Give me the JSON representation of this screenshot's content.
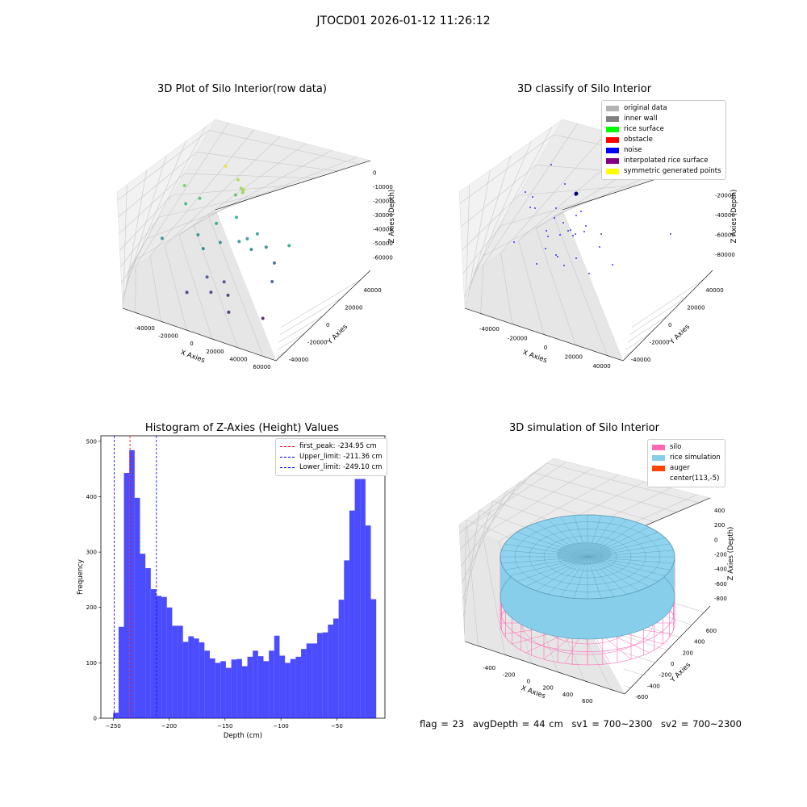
{
  "suptitle": "JTOCD01 2026-01-12 11:26:12",
  "chart_data": [
    {
      "type": "scatter",
      "title": "3D Plot of Silo Interior(row data)",
      "xlabel": "X Axies",
      "ylabel": "Y Axies",
      "zlabel": "Z Axies (Depth)",
      "xticks": [
        "-40000",
        "-20000",
        "0",
        "20000",
        "40000",
        "60000"
      ],
      "yticks": [
        "-40000",
        "-20000",
        "0",
        "20000",
        "40000"
      ],
      "zticks": [
        "0",
        "-10000",
        "-20000",
        "-30000",
        "-40000",
        "-50000",
        "-60000"
      ],
      "colormap": "viridis",
      "points": [
        {
          "x": 0,
          "y": 20000,
          "z": -2000
        },
        {
          "x": 8000,
          "y": 22000,
          "z": -8000
        },
        {
          "x": 12000,
          "y": 18000,
          "z": -10000
        },
        {
          "x": 15000,
          "y": 15000,
          "z": -9000
        },
        {
          "x": 14000,
          "y": 16000,
          "z": -11000
        },
        {
          "x": -25000,
          "y": 10000,
          "z": -15000
        },
        {
          "x": -22000,
          "y": 5000,
          "z": -22000
        },
        {
          "x": -15000,
          "y": 12000,
          "z": -20000
        },
        {
          "x": 5000,
          "y": 25000,
          "z": -18000
        },
        {
          "x": 10000,
          "y": 15000,
          "z": -25000
        },
        {
          "x": 0,
          "y": 5000,
          "z": -27000
        },
        {
          "x": 50000,
          "y": 10000,
          "z": -28000
        },
        {
          "x": -10000,
          "y": -2000,
          "z": -33000
        },
        {
          "x": 5000,
          "y": 0,
          "z": -34000
        },
        {
          "x": 15000,
          "y": 8000,
          "z": -34000
        },
        {
          "x": 20000,
          "y": 10000,
          "z": -32000
        },
        {
          "x": 25000,
          "y": 15000,
          "z": -30000
        },
        {
          "x": 30000,
          "y": 18000,
          "z": -37000
        },
        {
          "x": 22000,
          "y": 12000,
          "z": -38000
        },
        {
          "x": -5000,
          "y": -5000,
          "z": -38000
        },
        {
          "x": -30000,
          "y": -15000,
          "z": -35000
        },
        {
          "x": 40000,
          "y": 5000,
          "z": -48000
        },
        {
          "x": 35000,
          "y": 20000,
          "z": -45000
        },
        {
          "x": 0,
          "y": -10000,
          "z": -50000
        },
        {
          "x": 10000,
          "y": -5000,
          "z": -52000
        },
        {
          "x": 5000,
          "y": -15000,
          "z": -55000
        },
        {
          "x": -10000,
          "y": -20000,
          "z": -57000
        },
        {
          "x": 15000,
          "y": -10000,
          "z": -56000
        },
        {
          "x": 20000,
          "y": -20000,
          "z": -60000
        },
        {
          "x": 40000,
          "y": -10000,
          "z": -62000
        }
      ]
    },
    {
      "type": "scatter",
      "title": "3D classify of Silo Interior",
      "xlabel": "X Axies",
      "ylabel": "Y Axies",
      "zlabel": "Z Axies (Depth)",
      "xticks": [
        "-40000",
        "-20000",
        "0",
        "20000",
        "40000"
      ],
      "yticks": [
        "-40000",
        "-20000",
        "0",
        "20000",
        "40000"
      ],
      "zticks": [
        "0",
        "-20000",
        "-40000",
        "-60000",
        "-80000"
      ],
      "legend": [
        {
          "label": "original data",
          "color": "#b3b3b3"
        },
        {
          "label": "inner wall",
          "color": "#808080"
        },
        {
          "label": "rice surface",
          "color": "#00ff00"
        },
        {
          "label": "obstacle",
          "color": "#ff0000"
        },
        {
          "label": "noise",
          "color": "#0000ff"
        },
        {
          "label": "interpolated rice surface",
          "color": "#800080"
        },
        {
          "label": "symmetric generated points",
          "color": "#ffff00"
        }
      ]
    },
    {
      "type": "bar",
      "title": "Histogram of Z-Axies (Height) Values",
      "xlabel": "Depth (cm)",
      "ylabel": "Frequency",
      "xlim": [
        -261,
        -7
      ],
      "ylim": [
        0,
        510
      ],
      "xticks": [
        -250,
        -200,
        -150,
        -100,
        -50
      ],
      "yticks": [
        0,
        100,
        200,
        300,
        400,
        500
      ],
      "bin_start": -250,
      "bin_width": 4.8,
      "values": [
        10,
        165,
        443,
        484,
        398,
        297,
        271,
        233,
        221,
        219,
        200,
        167,
        167,
        138,
        148,
        144,
        137,
        122,
        108,
        100,
        103,
        91,
        106,
        107,
        94,
        111,
        122,
        112,
        103,
        122,
        149,
        113,
        100,
        107,
        111,
        125,
        135,
        135,
        154,
        155,
        169,
        180,
        214,
        285,
        375,
        432,
        432,
        348,
        215
      ],
      "bar_color": "#0000ff",
      "vlines": [
        {
          "x": -234.95,
          "color": "#ff0000",
          "label": "first_peak: -234.95 cm"
        },
        {
          "x": -211.36,
          "color": "#0000ff",
          "label": "Upper_limit: -211.36 cm"
        },
        {
          "x": -249.1,
          "color": "#0000ff",
          "label": "Lower_limit: -249.10 cm"
        }
      ],
      "legend_position": "top-right"
    },
    {
      "type": "surface",
      "title": "3D simulation of Silo Interior",
      "xlabel": "X Axies",
      "ylabel": "Y Axies",
      "zlabel": "Z Axies (Depth)",
      "xticks": [
        "-400",
        "-200",
        "0",
        "200",
        "400",
        "600"
      ],
      "yticks": [
        "-600",
        "-400",
        "-200",
        "0",
        "200",
        "400",
        "600"
      ],
      "zticks": [
        "400",
        "200",
        "0",
        "-200",
        "-400",
        "-600",
        "-800"
      ],
      "legend": [
        {
          "label": "silo",
          "color": "#ff69b4"
        },
        {
          "label": "rice simulation",
          "color": "#87ceeb"
        },
        {
          "label": "auger",
          "color": "#ff4500"
        },
        {
          "label": "center(113,-5)",
          "color": ""
        }
      ]
    }
  ],
  "status": {
    "flag": "flag = 23",
    "avg_depth": "avgDepth = 44 cm",
    "sv1": "sv1 = 700~2300",
    "sv2": "sv2 = 700~2300"
  }
}
